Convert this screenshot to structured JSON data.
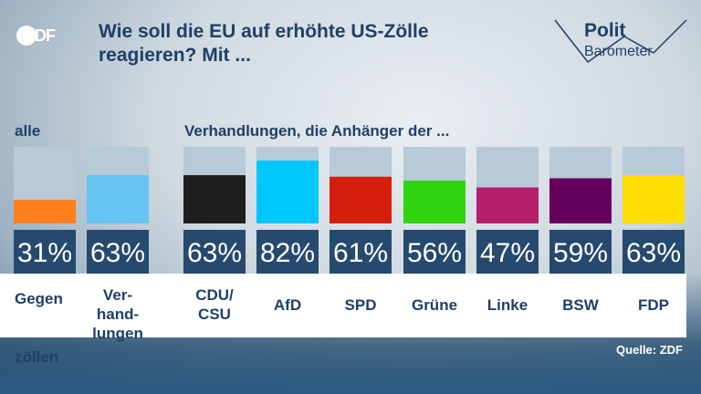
{
  "header": {
    "logo_text": "ZDF",
    "title": "Wie soll die EU auf erhöhte US-Zölle reagieren? Mit ...",
    "brand_top": "Polit",
    "brand_bottom": "Barometer"
  },
  "sections": {
    "left": "alle",
    "right": "Verhandlungen, die Anhänger der ..."
  },
  "source": "Quelle: ZDF",
  "colors": {
    "title": "#1f3f68",
    "bar_background": "#b7cad8",
    "value_box": "#26496e"
  },
  "chart_data": {
    "type": "bar",
    "ylim": [
      0,
      100
    ],
    "categories": [
      "Gegen zöllen",
      "Ver-hand-lungen",
      "CDU/CSU",
      "AfD",
      "SPD",
      "Grüne",
      "Linke",
      "BSW",
      "FDP"
    ],
    "category_labels": [
      [
        "Gegen",
        "zöllen"
      ],
      [
        "Ver-",
        "hand-",
        "lungen"
      ],
      [
        "CDU/",
        "CSU"
      ],
      [
        "AfD"
      ],
      [
        "SPD"
      ],
      [
        "Grüne"
      ],
      [
        "Linke"
      ],
      [
        "BSW"
      ],
      [
        "FDP"
      ]
    ],
    "values": [
      31,
      63,
      63,
      82,
      61,
      56,
      47,
      59,
      63
    ],
    "value_labels": [
      "31%",
      "63%",
      "63%",
      "82%",
      "61%",
      "56%",
      "47%",
      "59%",
      "63%"
    ],
    "bar_colors": [
      "#ff7f1e",
      "#66c3f2",
      "#1e1e1e",
      "#00c8ff",
      "#d61e0e",
      "#2fd40f",
      "#b51f6b",
      "#66005f",
      "#ffdd00"
    ]
  }
}
